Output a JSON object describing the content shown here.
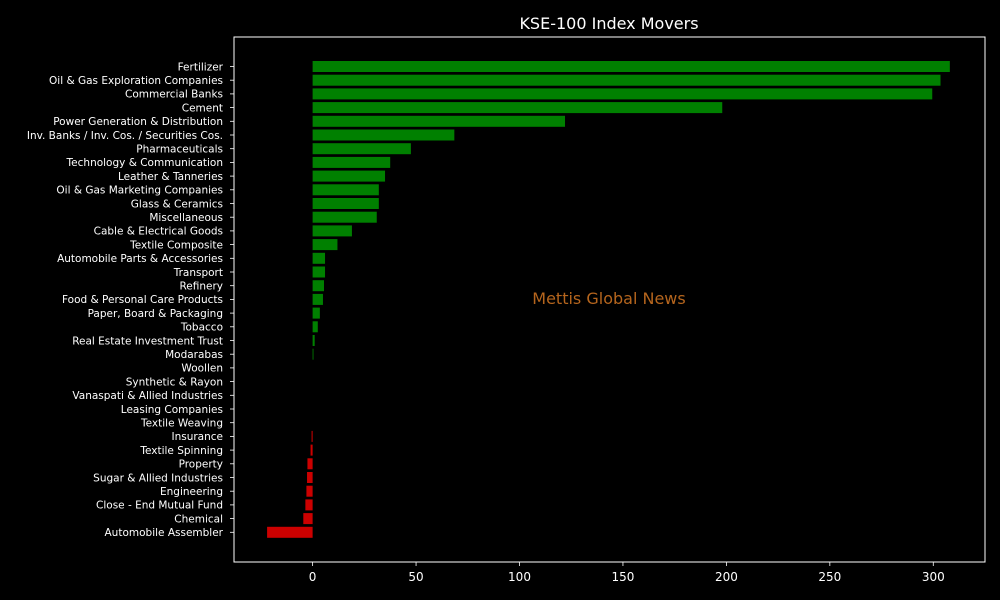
{
  "chart_data": {
    "type": "bar",
    "orientation": "horizontal",
    "title": "KSE-100 Index Movers",
    "watermark": "Mettis Global News",
    "xlim": [
      -38,
      325
    ],
    "xticks": [
      0,
      50,
      100,
      150,
      200,
      250,
      300
    ],
    "grid": false,
    "colors": {
      "positive": "#008000",
      "negative": "#cc0000",
      "background": "#000000",
      "axes": "#ffffff",
      "watermark": "#b5651d"
    },
    "categories": [
      "Fertilizer",
      "Oil & Gas Exploration Companies",
      "Commercial Banks",
      "Cement",
      "Power Generation & Distribution",
      "Inv. Banks / Inv. Cos. / Securities Cos.",
      "Pharmaceuticals",
      "Technology & Communication",
      "Leather & Tanneries",
      "Oil & Gas Marketing Companies",
      "Glass & Ceramics",
      "Miscellaneous",
      "Cable & Electrical Goods",
      "Textile Composite",
      "Automobile Parts & Accessories",
      "Transport",
      "Refinery",
      "Food & Personal Care Products",
      "Paper, Board & Packaging",
      "Tobacco",
      "Real Estate Investment Trust",
      "Modarabas",
      "Woollen",
      "Synthetic & Rayon",
      "Vanaspati & Allied Industries",
      "Leasing Companies",
      "Textile Weaving",
      "Insurance",
      "Textile Spinning",
      "Property",
      "Sugar & Allied Industries",
      "Engineering",
      "Close - End Mutual Fund",
      "Chemical",
      "Automobile Assembler"
    ],
    "values": [
      308,
      303.5,
      299.5,
      198,
      122,
      68.5,
      47.5,
      37.5,
      35,
      32,
      32,
      31,
      19,
      12,
      6,
      6,
      5.5,
      5,
      3.5,
      2.5,
      1,
      0.4,
      0,
      0,
      0,
      0,
      0,
      -0.5,
      -1,
      -2.5,
      -2.7,
      -3,
      -3.5,
      -4.5,
      -22
    ]
  }
}
